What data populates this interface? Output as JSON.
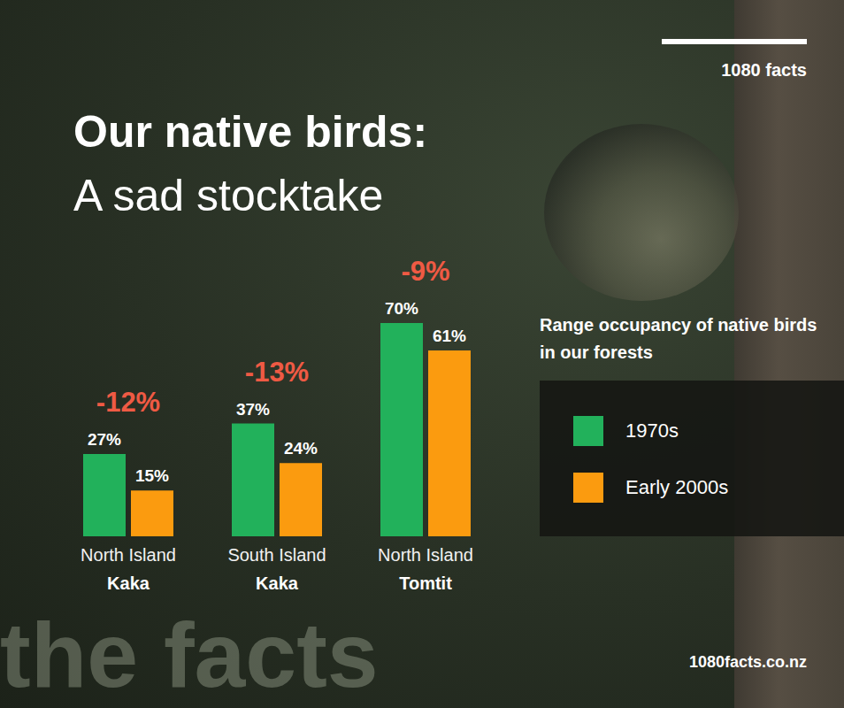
{
  "brand": "1080 facts",
  "footer": "1080facts.co.nz",
  "watermark": "the facts",
  "chart_data": {
    "type": "bar",
    "title": "Our native birds:",
    "subtitle": "A sad stocktake",
    "legend_title": "Range occupancy of native birds in our forests",
    "categories": [
      "North Island Kaka",
      "South Island Kaka",
      "North Island Tomtit"
    ],
    "series": [
      {
        "name": "1970s",
        "color": "#22b15b",
        "values": [
          27,
          37,
          70
        ],
        "value_labels": [
          "27%",
          "37%",
          "70%"
        ]
      },
      {
        "name": "Early 2000s",
        "color": "#fb9b0f",
        "values": [
          15,
          24,
          61
        ],
        "value_labels": [
          "15%",
          "24%",
          "61%"
        ]
      }
    ],
    "annotations": [
      {
        "category": "North Island Kaka",
        "text": "-12%"
      },
      {
        "category": "South Island Kaka",
        "text": "-13%"
      },
      {
        "category": "North Island Tomtit",
        "text": "-9%"
      }
    ],
    "ylim": [
      0,
      70
    ],
    "tick_labels": false,
    "data_labels": true,
    "grid": false,
    "legend": "right"
  }
}
